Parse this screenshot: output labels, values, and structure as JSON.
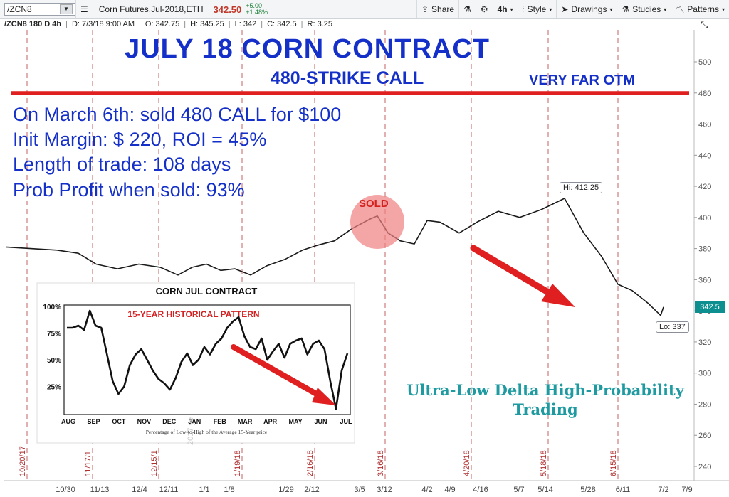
{
  "toolbar": {
    "symbol": "/ZCN8",
    "symbol_name": "Corn Futures,Jul-2018,ETH",
    "price": "342.50",
    "change_abs": "+5.00",
    "change_pct": "+1.48%",
    "share_label": "Share",
    "interval_label": "4h",
    "style_label": "Style",
    "drawings_label": "Drawings",
    "studies_label": "Studies",
    "patterns_label": "Patterns"
  },
  "infobar": {
    "series": "/ZCN8 180 D 4h",
    "date": "D: 7/3/18 9:00 AM",
    "open": "O: 342.75",
    "high": "H: 345.25",
    "low": "L: 342",
    "close": "C: 342.5",
    "range": "R: 3.25"
  },
  "annotations": {
    "title": "JULY 18 CORN CONTRACT",
    "subtitle": "480-STRIKE CALL",
    "otm_label": "VERY FAR OTM",
    "notes": [
      "On March 6th: sold 480 CALL for $100",
      "Init Margin: $ 220,  ROI = 45%",
      "Length of trade: 108 days",
      "Prob Profit when sold: 93%"
    ],
    "sold_label": "SOLD",
    "ultra_label": "Ultra-Low Delta High-Probability Trading",
    "hi_label": "Hi: 412.25",
    "lo_label": "Lo: 337",
    "last_price": "342.5",
    "watermark": "2017 ye"
  },
  "colors": {
    "accent_blue": "#1530c8",
    "strike_red": "#e02020",
    "teal": "#1e9aa0",
    "price_line": "#1a1a1a"
  },
  "chart_data": {
    "type": "line",
    "title": "",
    "ylim": [
      230,
      520
    ],
    "y_ticks": [
      240,
      260,
      280,
      300,
      320,
      340,
      360,
      380,
      400,
      420,
      440,
      460,
      480,
      500
    ],
    "x_ticks": [
      "10/30",
      "11/13",
      "12/4",
      "12/11",
      "1/1",
      "1/8",
      "1/29",
      "2/12",
      "3/5",
      "3/12",
      "4/2",
      "4/9",
      "4/16",
      "5/7",
      "5/14",
      "5/28",
      "6/11",
      "7/2",
      "7/9"
    ],
    "strike_line": 480,
    "expiry_labels": [
      "10/20/17",
      "11/17/1",
      "12/15/1",
      "1/19/18",
      "2/16/18",
      "3/16/18",
      "4/20/18",
      "5/18/18",
      "6/15/18"
    ],
    "price_points": [
      {
        "x": "10/20/17",
        "y": 381
      },
      {
        "x": "10/30",
        "y": 379
      },
      {
        "x": "11/6",
        "y": 377
      },
      {
        "x": "11/13",
        "y": 370
      },
      {
        "x": "11/20",
        "y": 367
      },
      {
        "x": "11/27",
        "y": 370
      },
      {
        "x": "12/4",
        "y": 368
      },
      {
        "x": "12/11",
        "y": 363
      },
      {
        "x": "12/18",
        "y": 368
      },
      {
        "x": "12/25",
        "y": 370
      },
      {
        "x": "1/1",
        "y": 366
      },
      {
        "x": "1/8",
        "y": 367
      },
      {
        "x": "1/15",
        "y": 363
      },
      {
        "x": "1/22",
        "y": 369
      },
      {
        "x": "1/29",
        "y": 373
      },
      {
        "x": "2/5",
        "y": 379
      },
      {
        "x": "2/12",
        "y": 382
      },
      {
        "x": "2/19",
        "y": 385
      },
      {
        "x": "2/26",
        "y": 393
      },
      {
        "x": "3/5",
        "y": 399
      },
      {
        "x": "3/9",
        "y": 401
      },
      {
        "x": "3/12",
        "y": 390
      },
      {
        "x": "3/19",
        "y": 385
      },
      {
        "x": "3/26",
        "y": 383
      },
      {
        "x": "4/2",
        "y": 398
      },
      {
        "x": "4/9",
        "y": 397
      },
      {
        "x": "4/16",
        "y": 390
      },
      {
        "x": "4/23",
        "y": 397
      },
      {
        "x": "4/30",
        "y": 404
      },
      {
        "x": "5/7",
        "y": 400
      },
      {
        "x": "5/14",
        "y": 405
      },
      {
        "x": "5/18",
        "y": 412.25
      },
      {
        "x": "5/28",
        "y": 390
      },
      {
        "x": "6/4",
        "y": 375
      },
      {
        "x": "6/11",
        "y": 357
      },
      {
        "x": "6/18",
        "y": 353
      },
      {
        "x": "6/25",
        "y": 345
      },
      {
        "x": "7/2",
        "y": 337
      },
      {
        "x": "7/3",
        "y": 342.5
      }
    ],
    "inset": {
      "title": "CORN JUL CONTRACT",
      "subtitle": "15-YEAR HISTORICAL PATTERN",
      "caption": "Percentage of Low-to-High of the Average 15-Year price",
      "y_ticks": [
        "100%",
        "75%",
        "50%",
        "25%"
      ],
      "months": [
        "AUG",
        "SEP",
        "OCT",
        "NOV",
        "DEC",
        "JAN",
        "FEB",
        "MAR",
        "APR",
        "MAY",
        "JUN",
        "JUL"
      ],
      "values": [
        80,
        80,
        82,
        78,
        96,
        82,
        80,
        55,
        30,
        18,
        25,
        45,
        55,
        60,
        50,
        40,
        32,
        28,
        22,
        33,
        48,
        56,
        45,
        50,
        62,
        55,
        65,
        70,
        80,
        86,
        90,
        72,
        62,
        60,
        70,
        50,
        58,
        65,
        52,
        65,
        68,
        70,
        55,
        65,
        68,
        60,
        30,
        4,
        40,
        56
      ]
    }
  }
}
